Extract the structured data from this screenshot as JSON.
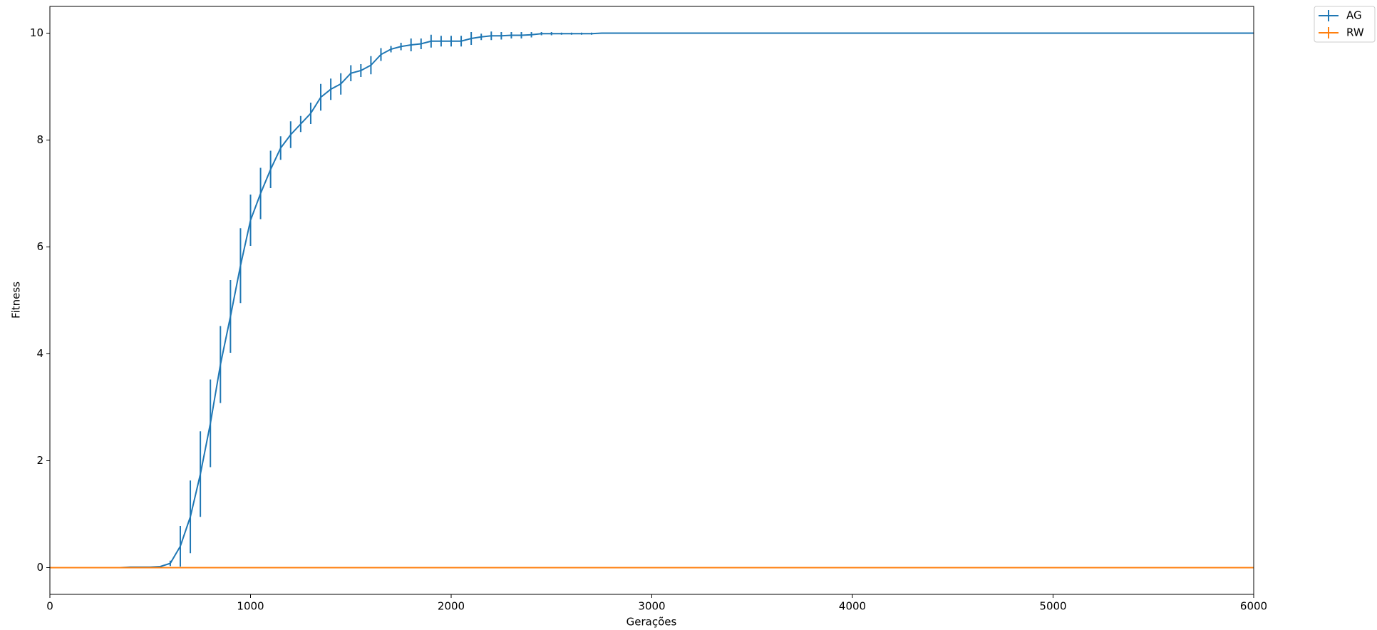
{
  "chart_data": {
    "type": "errorbar-line",
    "xlabel": "Gerações",
    "ylabel": "Fitness",
    "xlim": [
      0,
      6000
    ],
    "xticks": [
      0,
      1000,
      2000,
      3000,
      4000,
      5000,
      6000
    ],
    "ylim": [
      -0.5,
      10.5
    ],
    "yticks": [
      0,
      2,
      4,
      6,
      8,
      10
    ],
    "legend": "outside upper right",
    "grid": false,
    "series": [
      {
        "name": "AG",
        "color": "#1f77b4",
        "x": [
          0,
          50,
          100,
          150,
          200,
          250,
          300,
          350,
          400,
          450,
          500,
          550,
          600,
          650,
          700,
          750,
          800,
          850,
          900,
          950,
          1000,
          1050,
          1100,
          1150,
          1200,
          1250,
          1300,
          1350,
          1400,
          1450,
          1500,
          1550,
          1600,
          1650,
          1700,
          1750,
          1800,
          1850,
          1900,
          1950,
          2000,
          2050,
          2100,
          2150,
          2200,
          2250,
          2300,
          2350,
          2400,
          2450,
          2500,
          2550,
          2600,
          2650,
          2700,
          2750,
          6000
        ],
        "values": [
          0,
          0,
          0,
          0,
          0,
          0,
          0,
          0,
          0.01,
          0.01,
          0.01,
          0.02,
          0.08,
          0.4,
          0.95,
          1.75,
          2.7,
          3.8,
          4.7,
          5.65,
          6.5,
          7,
          7.45,
          7.85,
          8.1,
          8.3,
          8.5,
          8.8,
          8.95,
          9.05,
          9.25,
          9.3,
          9.4,
          9.6,
          9.7,
          9.75,
          9.78,
          9.8,
          9.85,
          9.85,
          9.85,
          9.85,
          9.9,
          9.93,
          9.95,
          9.95,
          9.96,
          9.96,
          9.97,
          9.99,
          9.99,
          9.99,
          9.99,
          9.99,
          9.99,
          10,
          10
        ],
        "errors": [
          0,
          0,
          0,
          0,
          0,
          0,
          0,
          0,
          0,
          0,
          0,
          0,
          0.05,
          0.38,
          0.68,
          0.8,
          0.82,
          0.72,
          0.68,
          0.7,
          0.48,
          0.48,
          0.35,
          0.22,
          0.25,
          0.15,
          0.2,
          0.25,
          0.2,
          0.2,
          0.15,
          0.12,
          0.17,
          0.12,
          0.06,
          0.07,
          0.12,
          0.1,
          0.12,
          0.1,
          0.1,
          0.1,
          0.12,
          0.06,
          0.08,
          0.07,
          0.06,
          0.06,
          0.05,
          0.03,
          0.03,
          0.02,
          0.02,
          0.02,
          0.02,
          0,
          0
        ]
      },
      {
        "name": "RW",
        "color": "#ff7f0e",
        "x": [
          0,
          6000
        ],
        "values": [
          0,
          0
        ],
        "errors": [
          0,
          0
        ]
      }
    ]
  }
}
